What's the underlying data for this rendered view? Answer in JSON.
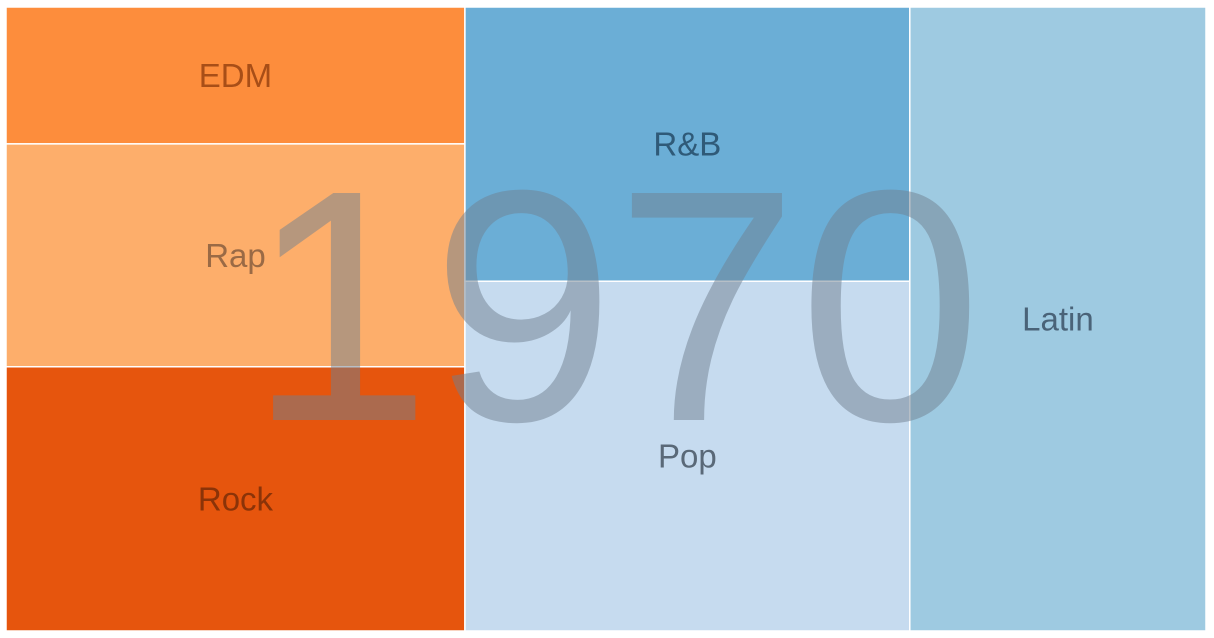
{
  "chart_data": {
    "type": "treemap",
    "period_label": "1970",
    "groups": [
      {
        "name": "",
        "color": "#e6550d",
        "children": [
          {
            "name": "EDM",
            "value": 86,
            "color": "#fd8d3c",
            "label_color": "#a84e17"
          },
          {
            "name": "Rap",
            "value": 140,
            "color": "#fdae6b",
            "label_color": "#9a6a45"
          },
          {
            "name": "Rock",
            "value": 166,
            "color": "#e6550d",
            "label_color": "#8b3308"
          }
        ]
      },
      {
        "name": "",
        "color": "#6baed6",
        "children": [
          {
            "name": "R&B",
            "value": 167,
            "color": "#6baed6",
            "label_color": "#2f5a78"
          },
          {
            "name": "Pop",
            "value": 213,
            "color": "#c6dbef",
            "label_color": "#5a6978"
          }
        ]
      },
      {
        "name": "",
        "color": "#9ecae1",
        "children": [
          {
            "name": "Latin",
            "value": 253,
            "color": "#9ecae1",
            "label_color": "#4a6378"
          }
        ]
      }
    ]
  }
}
